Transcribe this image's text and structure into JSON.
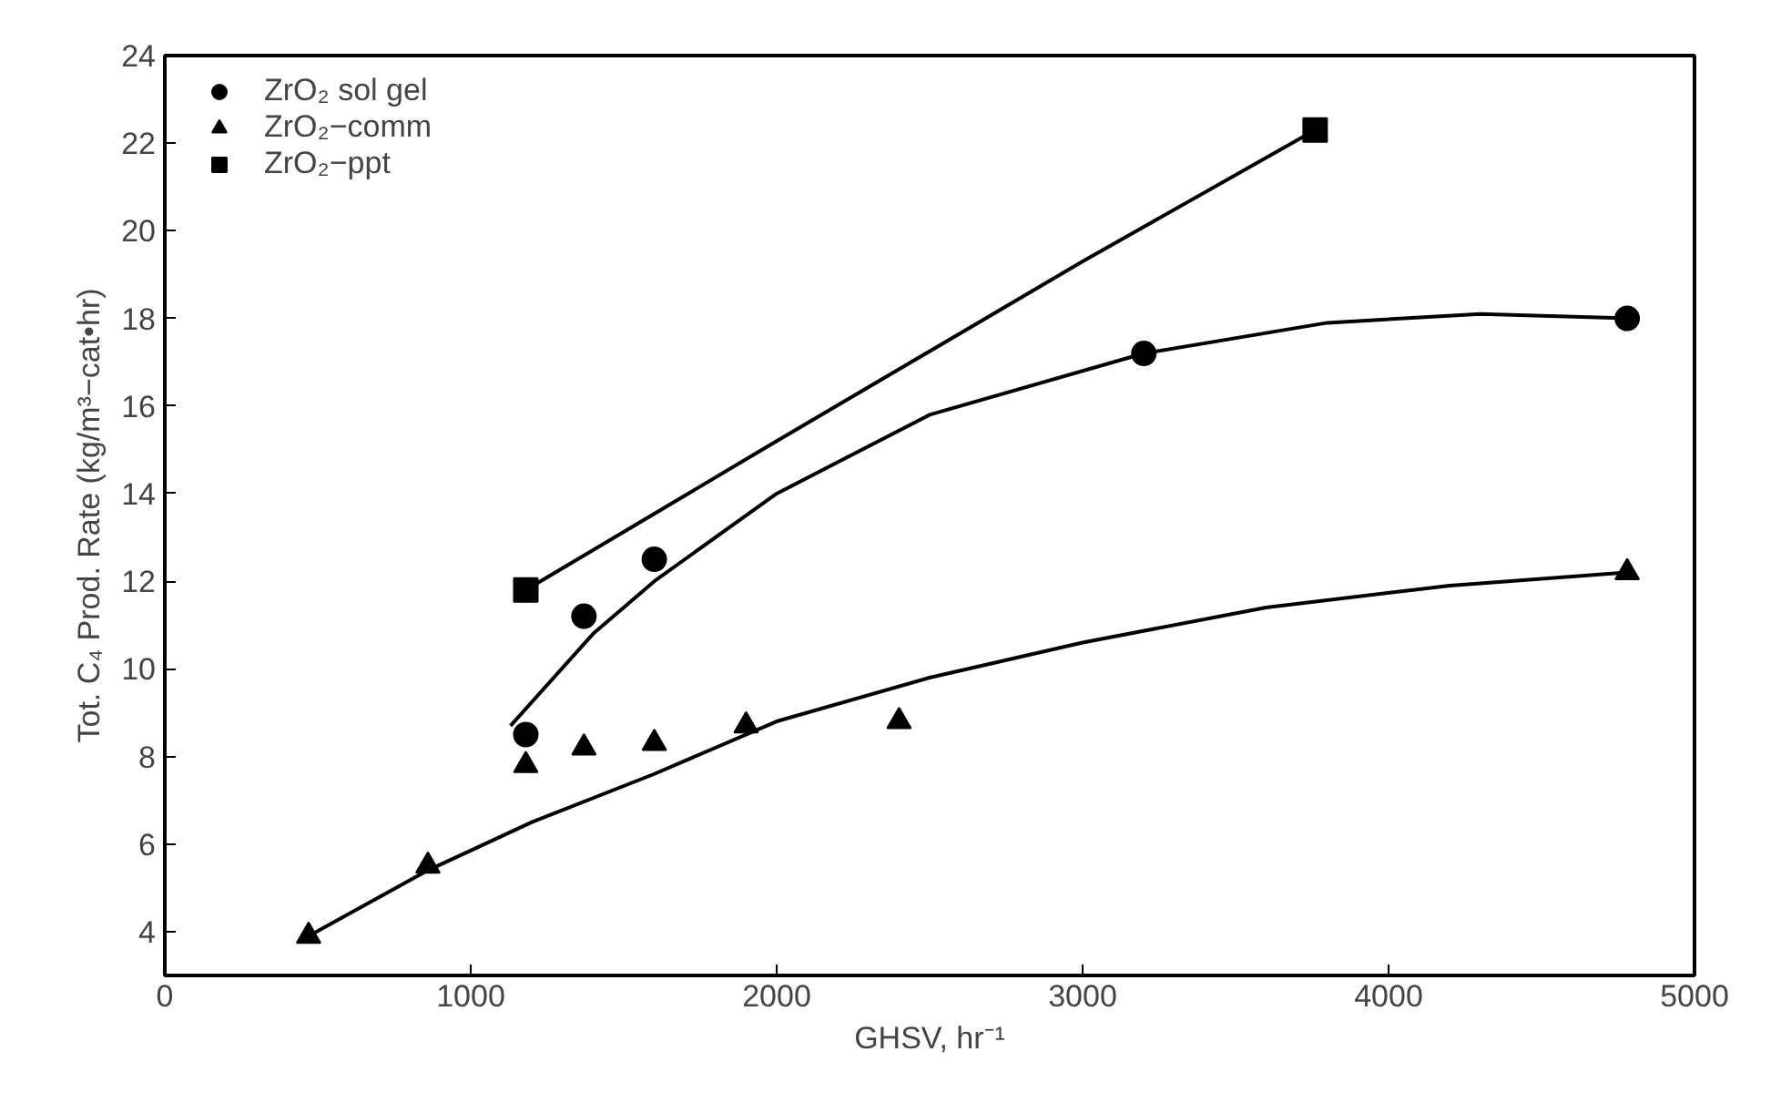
{
  "chart_data": {
    "type": "scatter",
    "xlabel": "GHSV, hr⁻¹",
    "ylabel": "Tot. C₄ Prod. Rate (kg/m³−cat•hr)",
    "xlim": [
      0,
      5000
    ],
    "ylim": [
      3,
      24
    ],
    "xticks": [
      0,
      1000,
      2000,
      3000,
      4000,
      5000
    ],
    "yticks": [
      4,
      6,
      8,
      10,
      12,
      14,
      16,
      18,
      20,
      22,
      24
    ],
    "grid": false,
    "legend": "top left",
    "series": [
      {
        "name": "ZrO₂ sol gel",
        "marker": "circle",
        "color": "#000000",
        "x": [
          1180,
          1370,
          1600,
          3200,
          4780
        ],
        "values": [
          8.5,
          11.2,
          12.5,
          17.2,
          18.0
        ]
      },
      {
        "name": "ZrO₂−comm",
        "marker": "triangle",
        "color": "#000000",
        "x": [
          470,
          860,
          1180,
          1370,
          1600,
          1900,
          2400,
          4780
        ],
        "values": [
          3.9,
          5.5,
          7.8,
          8.2,
          8.3,
          8.7,
          8.8,
          12.2
        ]
      },
      {
        "name": "ZrO₂−ppt",
        "marker": "square",
        "color": "#000000",
        "x": [
          1180,
          3760
        ],
        "values": [
          11.8,
          22.3
        ]
      },
      {
        "type": "line",
        "color": "#000000",
        "x": [
          1130,
          1400,
          1600,
          2000,
          2500,
          3200,
          3800,
          4300,
          4780
        ],
        "values": [
          8.7,
          10.8,
          12.0,
          14.0,
          15.8,
          17.2,
          17.9,
          18.1,
          18.0
        ]
      },
      {
        "type": "line",
        "color": "#000000",
        "x": [
          470,
          860,
          1200,
          1600,
          2000,
          2500,
          3000,
          3600,
          4200,
          4780
        ],
        "values": [
          3.9,
          5.4,
          6.5,
          7.6,
          8.8,
          9.8,
          10.6,
          11.4,
          11.9,
          12.2
        ]
      },
      {
        "type": "line",
        "color": "#000000",
        "x": [
          1180,
          2000,
          3000,
          3760
        ],
        "values": [
          11.8,
          15.2,
          19.3,
          22.3
        ]
      }
    ]
  }
}
